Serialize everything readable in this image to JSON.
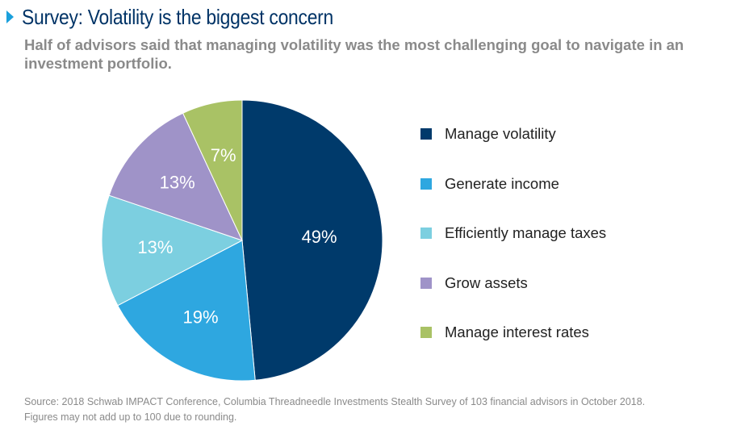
{
  "header": {
    "title": "Survey: Volatility is the biggest concern",
    "subtitle": "Half of advisors said that managing volatility was the most challenging goal to navigate in an investment portfolio."
  },
  "colors": {
    "title": "#003366",
    "accent": "#1aa0dc",
    "muted_text": "#8a8a8a"
  },
  "chart_data": {
    "type": "pie",
    "start_angle_deg": 0,
    "direction": "clockwise",
    "slices": [
      {
        "label": "Manage volatility",
        "value": 49,
        "display": "49%",
        "color": "#003a6b"
      },
      {
        "label": "Generate income",
        "value": 19,
        "display": "19%",
        "color": "#2ea7e0"
      },
      {
        "label": "Efficiently manage taxes",
        "value": 13,
        "display": "13%",
        "color": "#7ccfe0"
      },
      {
        "label": "Grow assets",
        "value": 13,
        "display": "13%",
        "color": "#9f93c8"
      },
      {
        "label": "Manage interest rates",
        "value": 7,
        "display": "7%",
        "color": "#a9c265"
      }
    ],
    "legend_placement": "right"
  },
  "footer": {
    "source_line1": "Source: 2018 Schwab IMPACT Conference, Columbia Threadneedle Investments Stealth Survey of 103 financial advisors in October 2018.",
    "source_line2": "Figures may not add up to 100 due to rounding."
  }
}
